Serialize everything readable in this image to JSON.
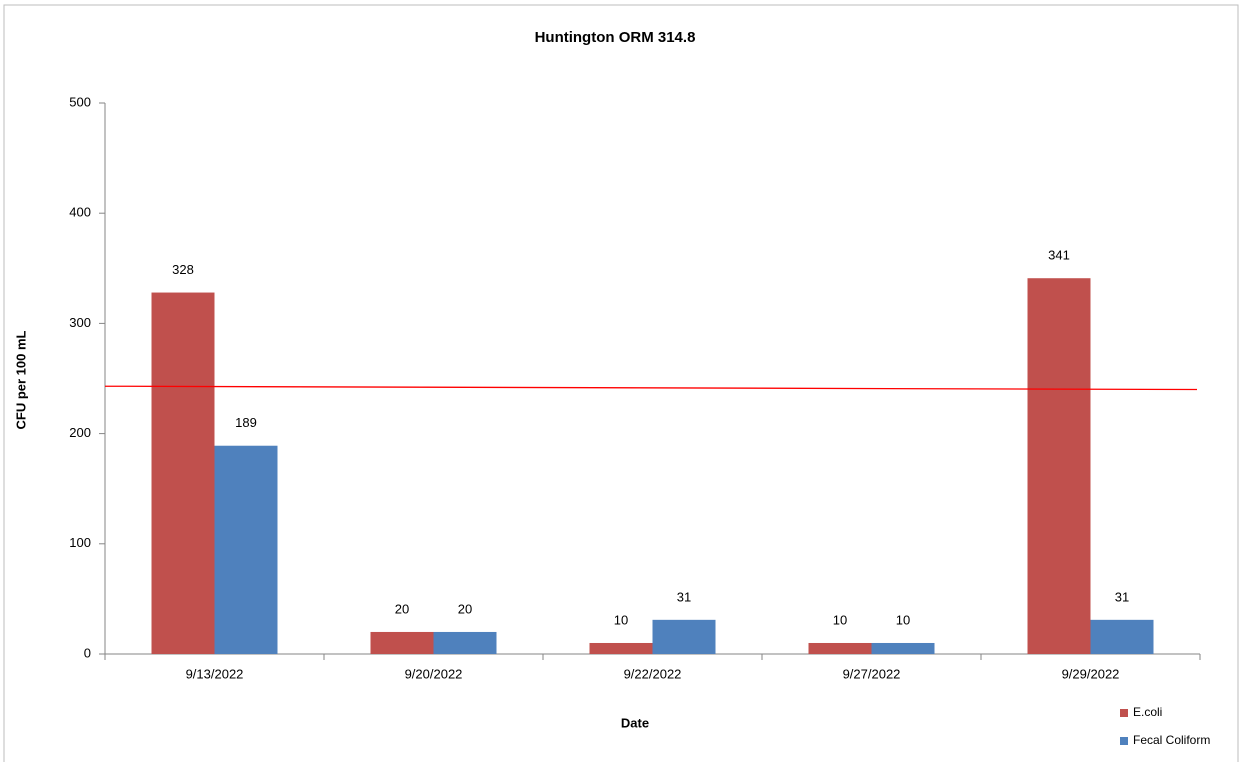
{
  "chart_data": {
    "type": "bar",
    "title": "Huntington ORM 314.8",
    "x_label": "Date",
    "y_label": "CFU per 100 mL",
    "categories": [
      "9/13/2022",
      "9/20/2022",
      "9/22/2022",
      "9/27/2022",
      "9/29/2022"
    ],
    "series": [
      {
        "name": "E.coli",
        "color": "#c0504d",
        "values": [
          328,
          20,
          10,
          10,
          341
        ]
      },
      {
        "name": "Fecal Coliform",
        "color": "#4f81bd",
        "values": [
          189,
          20,
          31,
          10,
          31
        ]
      }
    ],
    "ylim": [
      0,
      500
    ],
    "yticks": [
      0,
      100,
      200,
      300,
      400,
      500
    ],
    "grid": false,
    "legend": "bottom-right",
    "reference_line": {
      "y_start": 243,
      "y_end": 240,
      "color": "#ff0000"
    }
  }
}
